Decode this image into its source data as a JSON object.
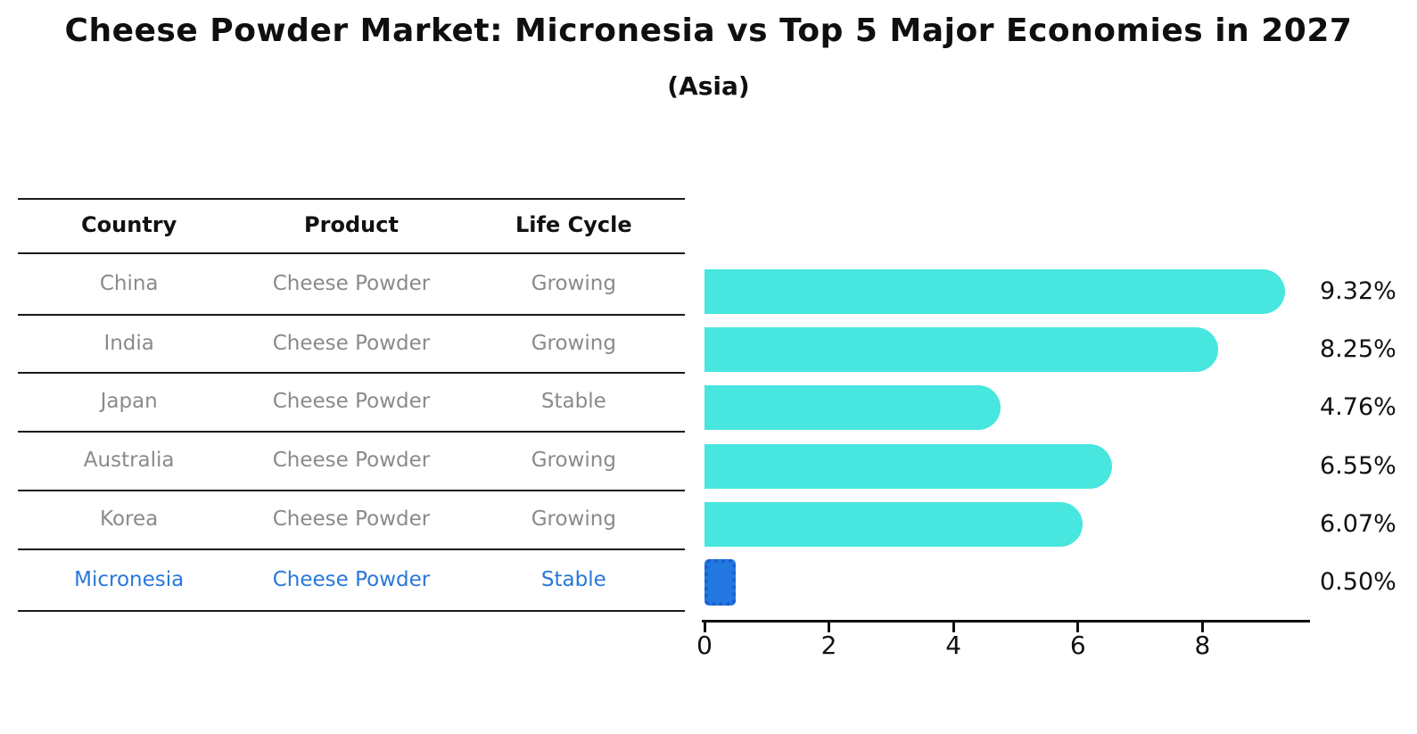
{
  "title": "Cheese Powder Market: Micronesia vs Top 5 Major Economies in 2027",
  "subtitle": "(Asia)",
  "table": {
    "headers": [
      "Country",
      "Product",
      "Life Cycle"
    ],
    "rows": [
      {
        "country": "China",
        "product": "Cheese Powder",
        "life_cycle": "Growing"
      },
      {
        "country": "India",
        "product": "Cheese Powder",
        "life_cycle": "Growing"
      },
      {
        "country": "Japan",
        "product": "Cheese Powder",
        "life_cycle": "Stable"
      },
      {
        "country": "Australia",
        "product": "Cheese Powder",
        "life_cycle": "Growing"
      },
      {
        "country": "Korea",
        "product": "Cheese Powder",
        "life_cycle": "Growing"
      },
      {
        "country": "Micronesia",
        "product": "Cheese Powder",
        "life_cycle": "Stable"
      }
    ],
    "highlight_row": "Micronesia"
  },
  "chart_data": {
    "type": "bar",
    "orientation": "horizontal",
    "title": "Cheese Powder Market: Micronesia vs Top 5 Major Economies in 2027",
    "subtitle": "(Asia)",
    "categories": [
      "China",
      "India",
      "Japan",
      "Australia",
      "Korea",
      "Micronesia"
    ],
    "values": [
      9.32,
      8.25,
      4.76,
      6.55,
      6.07,
      0.5
    ],
    "value_labels": [
      "9.32%",
      "8.25%",
      "4.76%",
      "6.55%",
      "6.07%",
      "0.50%"
    ],
    "xlabel": "",
    "ylabel": "",
    "xlim": [
      0,
      9.7
    ],
    "x_ticks": [
      0,
      2,
      4,
      6,
      8
    ],
    "grid": false,
    "legend": false,
    "highlight_index": 5
  },
  "colors": {
    "bar": "#47E6DE",
    "highlight_bar": "#2277E0",
    "highlight_border": "#1A5FCE",
    "highlight_text": "#2878D8",
    "row_text": "#8A8A8A",
    "header_text": "#111111",
    "axis": "#111111"
  }
}
